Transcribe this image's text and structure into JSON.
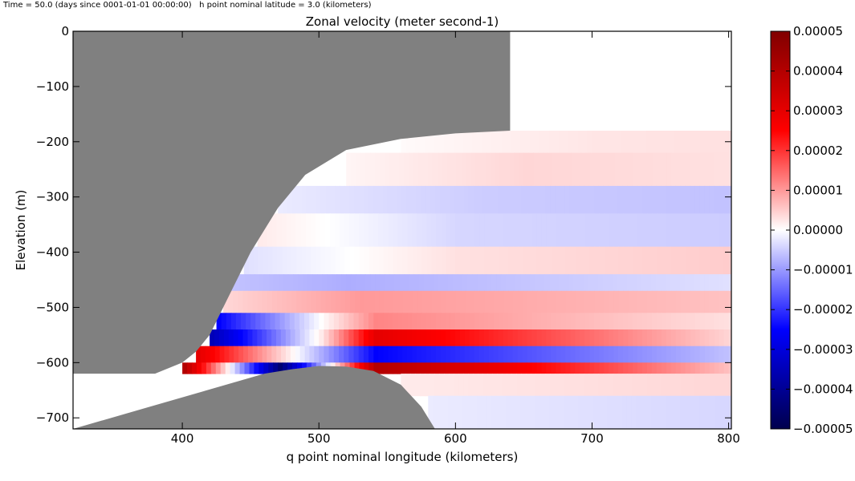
{
  "header_text": "Time = 50.0 (days since 0001-01-01 00:00:00)   h point nominal latitude = 3.0 (kilometers)",
  "chart_data": {
    "type": "heatmap",
    "title": "Zonal velocity (meter  second-1)",
    "xlabel": "q point nominal longitude (kilometers)",
    "ylabel": "Elevation (m)",
    "xlim": [
      320,
      802
    ],
    "ylim": [
      -720,
      0
    ],
    "xticks": [
      400,
      500,
      600,
      700,
      800
    ],
    "yticks": [
      0,
      -100,
      -200,
      -300,
      -400,
      -500,
      -600,
      -700
    ],
    "colorbar": {
      "colormap": "seismic",
      "range": [
        -5e-05,
        5e-05
      ],
      "tick_labels": [
        "0.00005",
        "0.00004",
        "0.00003",
        "0.00002",
        "0.00001",
        "0.00000",
        "-0.00001",
        "-0.00002",
        "-0.00003",
        "-0.00004",
        "-0.00005"
      ]
    },
    "land_color": "#808080",
    "ice_shelf_boundary": [
      [
        320,
        0
      ],
      [
        640,
        0
      ],
      [
        640,
        -180
      ],
      [
        600,
        -185
      ],
      [
        560,
        -195
      ],
      [
        520,
        -215
      ],
      [
        490,
        -260
      ],
      [
        470,
        -320
      ],
      [
        460,
        -360
      ],
      [
        450,
        -400
      ],
      [
        440,
        -450
      ],
      [
        430,
        -500
      ],
      [
        420,
        -550
      ],
      [
        410,
        -580
      ],
      [
        400,
        -600
      ],
      [
        380,
        -620
      ],
      [
        320,
        -620
      ]
    ],
    "bump_boundary": [
      [
        460,
        -620
      ],
      [
        480,
        -612
      ],
      [
        500,
        -606
      ],
      [
        520,
        -607
      ],
      [
        540,
        -615
      ],
      [
        560,
        -640
      ],
      [
        575,
        -680
      ],
      [
        585,
        -720
      ],
      [
        320,
        -720
      ]
    ],
    "bands": [
      {
        "y": [
          -180,
          -220
        ],
        "values": [
          [
            560,
            5e-07
          ],
          [
            700,
            2.5e-06
          ],
          [
            800,
            3e-06
          ]
        ]
      },
      {
        "y": [
          -220,
          -280
        ],
        "values": [
          [
            520,
            1e-06
          ],
          [
            650,
            4e-06
          ],
          [
            800,
            3e-06
          ]
        ]
      },
      {
        "y": [
          -280,
          -330
        ],
        "values": [
          [
            470,
            -2e-06
          ],
          [
            620,
            -5e-06
          ],
          [
            800,
            -6e-06
          ]
        ]
      },
      {
        "y": [
          -330,
          -390
        ],
        "values": [
          [
            455,
            2e-06
          ],
          [
            600,
            -4e-06
          ],
          [
            800,
            -5e-06
          ]
        ]
      },
      {
        "y": [
          -390,
          -440
        ],
        "values": [
          [
            445,
            -3e-06
          ],
          [
            600,
            3e-06
          ],
          [
            800,
            5e-06
          ]
        ]
      },
      {
        "y": [
          -440,
          -470
        ],
        "values": [
          [
            435,
            -6e-06
          ],
          [
            520,
            -8e-06
          ],
          [
            800,
            -3e-06
          ]
        ]
      },
      {
        "y": [
          -470,
          -510
        ],
        "values": [
          [
            430,
            4e-06
          ],
          [
            530,
            1e-05
          ],
          [
            800,
            6e-06
          ]
        ]
      },
      {
        "y": [
          -510,
          -540
        ],
        "values": [
          [
            425,
            -2.5e-05
          ],
          [
            500,
            1e-07
          ],
          [
            540,
            1.2e-05
          ],
          [
            800,
            3e-06
          ]
        ]
      },
      {
        "y": [
          -540,
          -570
        ],
        "values": [
          [
            420,
            -3.5e-05
          ],
          [
            500,
            2e-06
          ],
          [
            540,
            3e-05
          ],
          [
            800,
            4e-06
          ]
        ]
      },
      {
        "y": [
          -570,
          -600
        ],
        "values": [
          [
            410,
            3e-05
          ],
          [
            500,
            -8e-06
          ],
          [
            540,
            -2.5e-05
          ],
          [
            800,
            -6e-06
          ]
        ]
      },
      {
        "y": [
          -600,
          -620
        ],
        "values": [
          [
            400,
            4e-05
          ],
          [
            470,
            -4.5e-05
          ],
          [
            540,
            4e-05
          ],
          [
            800,
            6e-06
          ]
        ]
      },
      {
        "y": [
          -620,
          -660
        ],
        "values": [
          [
            560,
            2e-06
          ],
          [
            800,
            4e-06
          ]
        ]
      },
      {
        "y": [
          -660,
          -720
        ],
        "values": [
          [
            580,
            -2e-06
          ],
          [
            800,
            -4e-06
          ]
        ]
      }
    ]
  }
}
